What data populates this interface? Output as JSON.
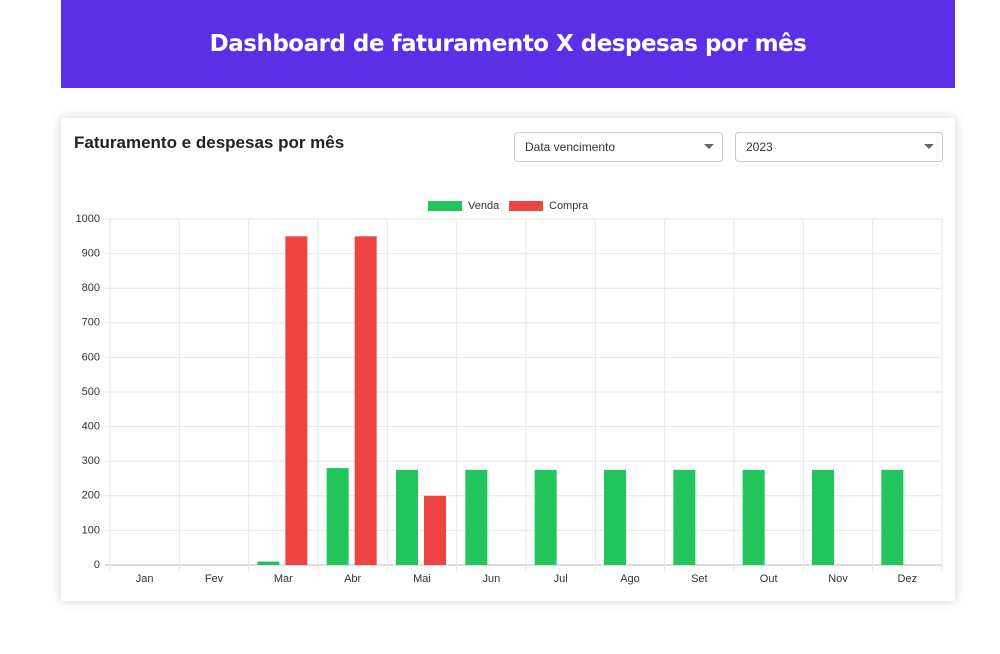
{
  "header": {
    "title": "Dashboard de faturamento X despesas por mês"
  },
  "filters": {
    "date_field": "Data vencimento",
    "year": "2023"
  },
  "chart_data": {
    "type": "bar",
    "title": "Faturamento e despesas por mês",
    "categories": [
      "Jan",
      "Fev",
      "Mar",
      "Abr",
      "Mai",
      "Jun",
      "Jul",
      "Ago",
      "Set",
      "Out",
      "Nov",
      "Dez"
    ],
    "series": [
      {
        "name": "Venda",
        "color": "#22c55e",
        "values": [
          0,
          0,
          10,
          280,
          275,
          275,
          275,
          275,
          275,
          275,
          275,
          275
        ]
      },
      {
        "name": "Compra",
        "color": "#ef4444",
        "values": [
          0,
          0,
          950,
          950,
          200,
          0,
          0,
          0,
          0,
          0,
          0,
          0
        ]
      }
    ],
    "ylim": [
      0,
      1000
    ],
    "yticks": [
      0,
      100,
      200,
      300,
      400,
      500,
      600,
      700,
      800,
      900,
      1000
    ],
    "grid": true
  }
}
